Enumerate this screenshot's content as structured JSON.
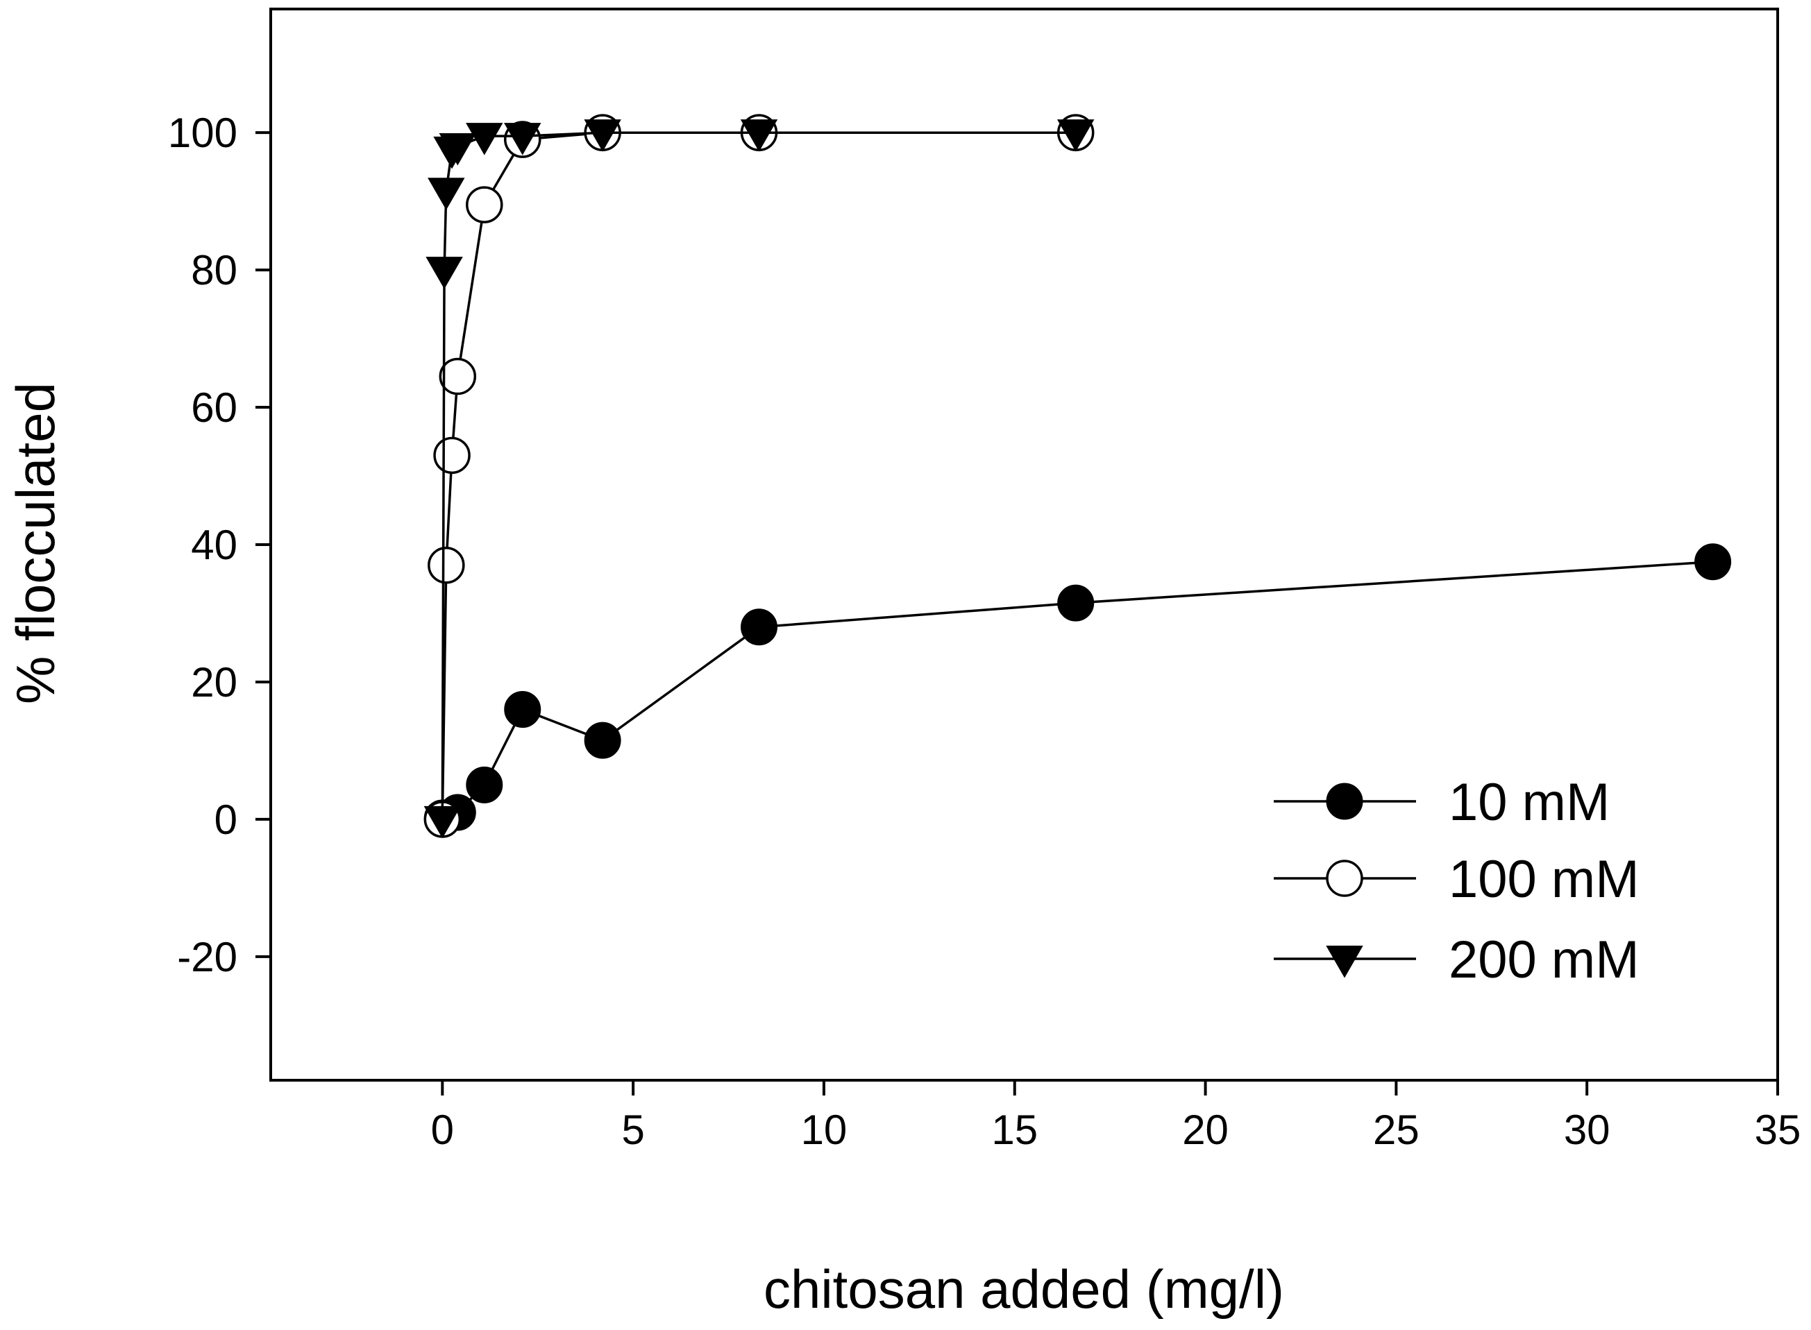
{
  "chart_data": {
    "type": "line",
    "title": "",
    "xlabel": "chitosan added (mg/l)",
    "ylabel": "% flocculated",
    "xlim": [
      -4.5,
      35
    ],
    "ylim": [
      -38,
      118
    ],
    "xticks": [
      0,
      5,
      10,
      15,
      20,
      25,
      30,
      35
    ],
    "yticks": [
      -20,
      0,
      20,
      40,
      60,
      80,
      100
    ],
    "xtick_labels": [
      "0",
      "5",
      "10",
      "15",
      "20",
      "25",
      "30",
      "35"
    ],
    "ytick_labels": [
      "-20",
      "0",
      "20",
      "40",
      "60",
      "80",
      "100"
    ],
    "grid": false,
    "legend_position": "bottom-right",
    "series": [
      {
        "name": "10 mM",
        "marker": "filled-circle",
        "x": [
          0,
          0.4,
          1.1,
          2.1,
          4.2,
          8.3,
          16.6,
          33.3
        ],
        "y": [
          0.2,
          1,
          5,
          16,
          11.5,
          28,
          31.5,
          37.5
        ]
      },
      {
        "name": "100 mM",
        "marker": "open-circle",
        "x": [
          0,
          0.1,
          0.25,
          0.4,
          1.1,
          2.1,
          4.2,
          8.3,
          16.6
        ],
        "y": [
          0,
          37,
          53,
          64.5,
          89.5,
          99,
          100,
          100,
          100
        ]
      },
      {
        "name": "200 mM",
        "marker": "filled-triangle-down",
        "x": [
          0,
          0.05,
          0.1,
          0.25,
          0.4,
          1.1,
          2.1,
          4.2,
          8.3,
          16.6
        ],
        "y": [
          0,
          80,
          91.5,
          97.5,
          98,
          99.5,
          99.5,
          100,
          100,
          100
        ]
      }
    ]
  }
}
